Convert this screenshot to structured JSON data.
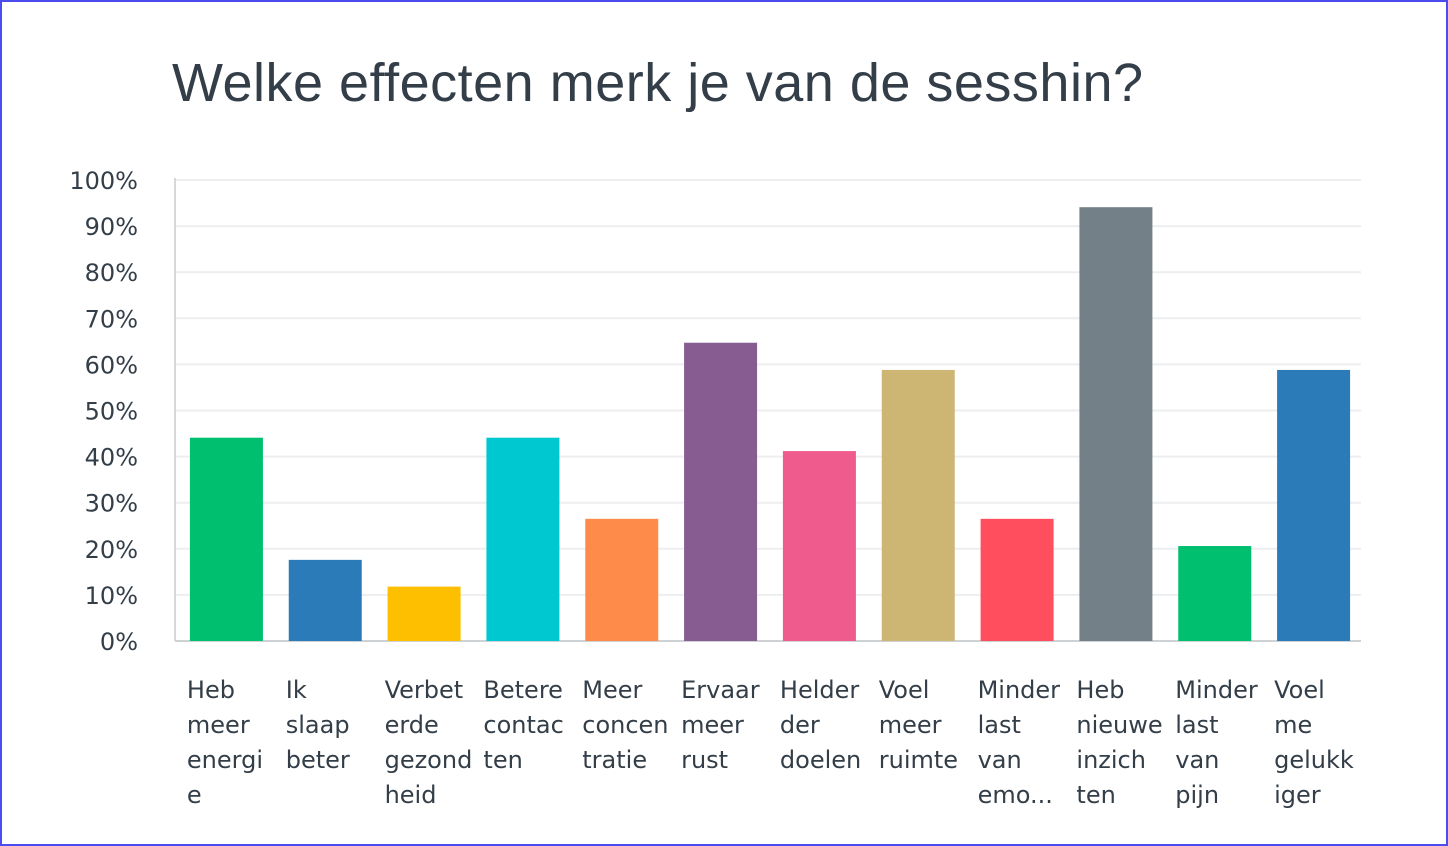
{
  "chart_data": {
    "type": "bar",
    "title": "Welke effecten merk je van de sesshin?",
    "categories": [
      "Heb meer energie",
      "Ik slaap beter",
      "Verbeterde gezondheid",
      "Betere contacten",
      "Meer concentratie",
      "Ervaar meer rust",
      "Helderder doelen",
      "Voel meer ruimte",
      "Minder last van emo...",
      "Heb nieuwe inzichten",
      "Minder last van pijn",
      "Voel me gelukkiger"
    ],
    "category_label_lines": [
      [
        "Heb",
        "meer",
        "energi",
        "e"
      ],
      [
        "Ik",
        "slaap",
        "beter"
      ],
      [
        "Verbet",
        "erde",
        "gezond",
        "heid"
      ],
      [
        "Betere",
        "contac",
        "ten"
      ],
      [
        "Meer",
        "concen",
        "tratie"
      ],
      [
        "Ervaar",
        "meer",
        "rust"
      ],
      [
        "Helder",
        "der",
        "doelen"
      ],
      [
        "Voel",
        "meer",
        "ruimte"
      ],
      [
        "Minder",
        "last",
        "van",
        "emo..."
      ],
      [
        "Heb",
        "nieuwe",
        "inzich",
        "ten"
      ],
      [
        "Minder",
        "last",
        "van",
        "pijn"
      ],
      [
        "Voel",
        "me",
        "gelukk",
        "iger"
      ]
    ],
    "values": [
      44.1,
      17.6,
      11.8,
      44.1,
      26.5,
      64.7,
      41.2,
      58.8,
      26.5,
      94.1,
      20.6,
      58.8
    ],
    "colors": [
      "#00bf6f",
      "#2c7bb9",
      "#fdbf00",
      "#00c8d0",
      "#ff8b4a",
      "#875c91",
      "#f05b8e",
      "#cdb574",
      "#ff4f5e",
      "#738087",
      "#00bf6f",
      "#2c7bb9"
    ],
    "yticks": [
      "0%",
      "10%",
      "20%",
      "30%",
      "40%",
      "50%",
      "60%",
      "70%",
      "80%",
      "90%",
      "100%"
    ],
    "ylim": [
      0,
      100
    ],
    "xlabel": "",
    "ylabel": "",
    "grid": true
  }
}
